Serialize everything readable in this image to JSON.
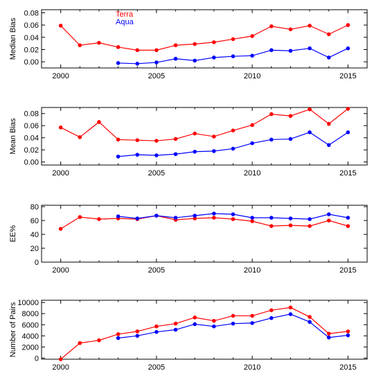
{
  "chart_data": [
    {
      "type": "line",
      "ylabel": "Median Bias",
      "ylim": [
        -0.01,
        0.085
      ],
      "yticks": [
        0,
        0.02,
        0.04,
        0.06,
        0.08
      ],
      "ytick_labels": [
        "0.00",
        "0.02",
        "0.04",
        "0.06",
        "0.08"
      ],
      "xlim": [
        1999,
        2016
      ],
      "xticks": [
        2000,
        2005,
        2010,
        2015
      ],
      "xtick_labels": [
        "2000",
        "2005",
        "2010",
        "2015"
      ],
      "legend": {
        "placement": "top-left",
        "entries": [
          "Terra",
          "Aqua"
        ]
      },
      "series": [
        {
          "name": "Terra",
          "color": "#ff0000",
          "x": [
            2000,
            2001,
            2002,
            2003,
            2004,
            2005,
            2006,
            2007,
            2008,
            2009,
            2010,
            2011,
            2012,
            2013,
            2014,
            2015
          ],
          "y": [
            0.059,
            0.027,
            0.031,
            0.024,
            0.019,
            0.019,
            0.027,
            0.029,
            0.032,
            0.037,
            0.042,
            0.058,
            0.053,
            0.059,
            0.045,
            0.06
          ]
        },
        {
          "name": "Aqua",
          "color": "#0000ff",
          "x": [
            2003,
            2004,
            2005,
            2006,
            2007,
            2008,
            2009,
            2010,
            2011,
            2012,
            2013,
            2014,
            2015
          ],
          "y": [
            -0.002,
            -0.003,
            -0.001,
            0.005,
            0.002,
            0.007,
            0.009,
            0.01,
            0.019,
            0.018,
            0.022,
            0.007,
            0.022
          ]
        }
      ]
    },
    {
      "type": "line",
      "ylabel": "Mean Bias",
      "ylim": [
        -0.005,
        0.09
      ],
      "yticks": [
        0,
        0.02,
        0.04,
        0.06,
        0.08
      ],
      "ytick_labels": [
        "0.00",
        "0.02",
        "0.04",
        "0.06",
        "0.08"
      ],
      "xlim": [
        1999,
        2016
      ],
      "xticks": [
        2000,
        2005,
        2010,
        2015
      ],
      "xtick_labels": [
        "2000",
        "2005",
        "2010",
        "2015"
      ],
      "series": [
        {
          "name": "Terra",
          "color": "#ff0000",
          "x": [
            2000,
            2001,
            2002,
            2003,
            2004,
            2005,
            2006,
            2007,
            2008,
            2009,
            2010,
            2011,
            2012,
            2013,
            2014,
            2015
          ],
          "y": [
            0.057,
            0.041,
            0.066,
            0.037,
            0.036,
            0.035,
            0.038,
            0.047,
            0.042,
            0.052,
            0.061,
            0.079,
            0.076,
            0.087,
            0.063,
            0.088
          ]
        },
        {
          "name": "Aqua",
          "color": "#0000ff",
          "x": [
            2003,
            2004,
            2005,
            2006,
            2007,
            2008,
            2009,
            2010,
            2011,
            2012,
            2013,
            2014,
            2015
          ],
          "y": [
            0.009,
            0.012,
            0.011,
            0.013,
            0.017,
            0.018,
            0.022,
            0.031,
            0.037,
            0.038,
            0.049,
            0.028,
            0.049
          ]
        }
      ]
    },
    {
      "type": "line",
      "ylabel": "EE%",
      "ylim": [
        0,
        82
      ],
      "yticks": [
        0,
        20,
        40,
        60,
        80
      ],
      "ytick_labels": [
        "0",
        "20",
        "40",
        "60",
        "80"
      ],
      "xlim": [
        1999,
        2016
      ],
      "xticks": [
        2000,
        2005,
        2010,
        2015
      ],
      "xtick_labels": [
        "2000",
        "2005",
        "2010",
        "2015"
      ],
      "series": [
        {
          "name": "Terra",
          "color": "#ff0000",
          "x": [
            2000,
            2001,
            2002,
            2003,
            2004,
            2005,
            2006,
            2007,
            2008,
            2009,
            2010,
            2011,
            2012,
            2013,
            2014,
            2015
          ],
          "y": [
            48,
            65,
            62,
            63,
            62,
            67,
            61,
            63,
            64,
            62,
            59,
            52,
            53,
            52,
            60,
            52
          ]
        },
        {
          "name": "Aqua",
          "color": "#0000ff",
          "x": [
            2003,
            2004,
            2005,
            2006,
            2007,
            2008,
            2009,
            2010,
            2011,
            2012,
            2013,
            2014,
            2015
          ],
          "y": [
            66,
            63,
            67,
            64,
            67,
            70,
            69,
            64,
            64,
            63,
            62,
            69,
            64
          ]
        }
      ]
    },
    {
      "type": "line",
      "ylabel": "Number of Pairs",
      "ylim": [
        -200,
        10400
      ],
      "yticks": [
        0,
        2000,
        4000,
        6000,
        8000,
        10000
      ],
      "ytick_labels": [
        "0",
        "2000",
        "4000",
        "6000",
        "8000",
        "10000"
      ],
      "xlim": [
        1999,
        2016
      ],
      "xticks": [
        2000,
        2005,
        2010,
        2015
      ],
      "xtick_labels": [
        "2000",
        "2005",
        "2010",
        "2015"
      ],
      "series": [
        {
          "name": "Terra",
          "color": "#ff0000",
          "x": [
            2000,
            2001,
            2002,
            2003,
            2004,
            2005,
            2006,
            2007,
            2008,
            2009,
            2010,
            2011,
            2012,
            2013,
            2014,
            2015
          ],
          "y": [
            -200,
            2700,
            3200,
            4300,
            4800,
            5700,
            6200,
            7300,
            6700,
            7600,
            7600,
            8600,
            9100,
            7400,
            4400,
            4800
          ]
        },
        {
          "name": "Aqua",
          "color": "#0000ff",
          "x": [
            2003,
            2004,
            2005,
            2006,
            2007,
            2008,
            2009,
            2010,
            2011,
            2012,
            2013,
            2014,
            2015
          ],
          "y": [
            3600,
            4000,
            4700,
            5100,
            6100,
            5700,
            6200,
            6300,
            7200,
            7900,
            6500,
            3700,
            4100
          ]
        }
      ]
    }
  ]
}
